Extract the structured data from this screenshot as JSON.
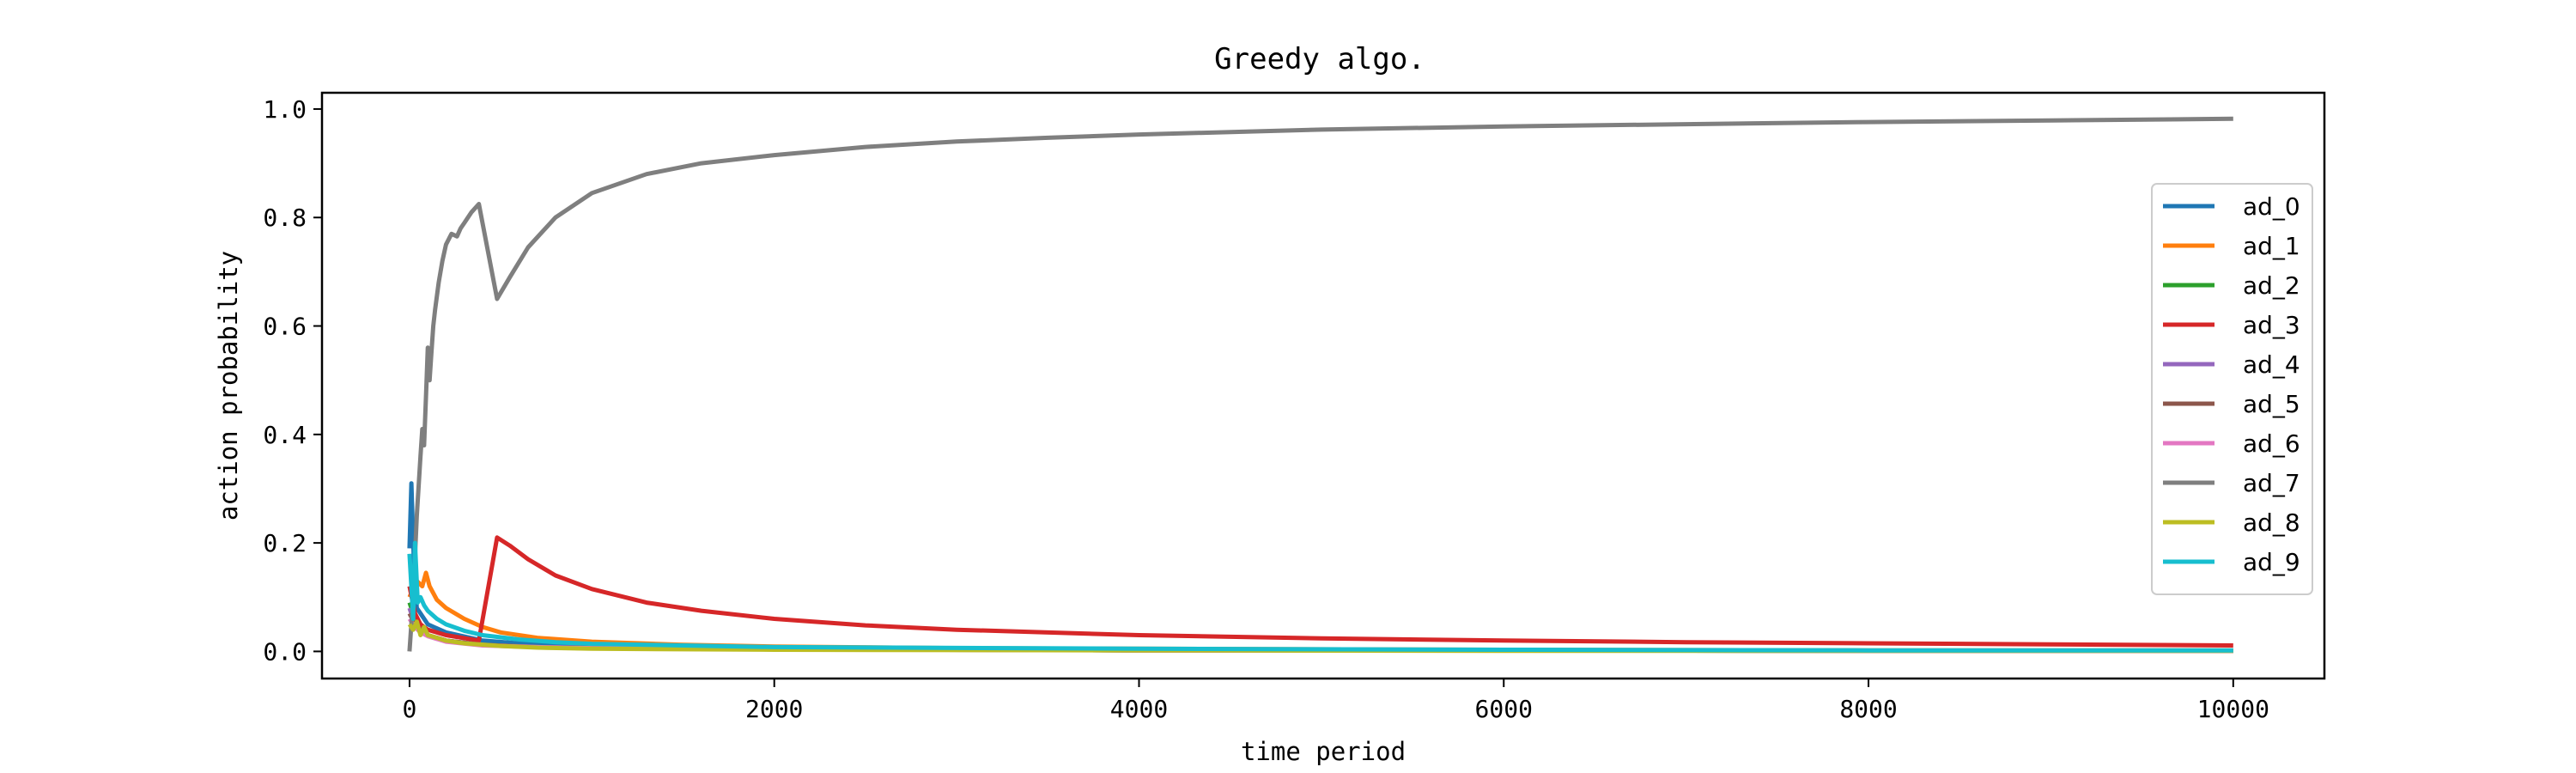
{
  "chart_data": {
    "type": "line",
    "title": "Greedy algo.",
    "xlabel": "time period",
    "ylabel": "action probability",
    "xlim": [
      -480,
      10500
    ],
    "ylim": [
      -0.05,
      1.03
    ],
    "xticks": [
      0,
      2000,
      4000,
      6000,
      8000,
      10000
    ],
    "xtick_labels": [
      "0",
      "2000",
      "4000",
      "6000",
      "8000",
      "10000"
    ],
    "yticks": [
      0.0,
      0.2,
      0.4,
      0.6,
      0.8,
      1.0
    ],
    "ytick_labels": [
      "0.0",
      "0.2",
      "0.4",
      "0.6",
      "0.8",
      "1.0"
    ],
    "grid": false,
    "legend_position": "center-right",
    "series": [
      {
        "name": "ad_0",
        "color": "#1f77b4",
        "x": [
          0,
          10,
          25,
          40,
          60,
          100,
          200,
          400,
          700,
          1000,
          2000,
          4000,
          6000,
          8000,
          10000
        ],
        "y": [
          0.19,
          0.31,
          0.15,
          0.08,
          0.07,
          0.05,
          0.035,
          0.02,
          0.012,
          0.009,
          0.005,
          0.003,
          0.002,
          0.0015,
          0.001
        ]
      },
      {
        "name": "ad_1",
        "color": "#ff7f0e",
        "x": [
          0,
          40,
          70,
          90,
          110,
          150,
          200,
          300,
          400,
          500,
          700,
          1000,
          1500,
          2000,
          3000,
          4000,
          6000,
          8000,
          10000
        ],
        "y": [
          0.1,
          0.13,
          0.12,
          0.145,
          0.12,
          0.095,
          0.08,
          0.06,
          0.045,
          0.035,
          0.025,
          0.018,
          0.012,
          0.009,
          0.006,
          0.005,
          0.003,
          0.002,
          0.002
        ]
      },
      {
        "name": "ad_2",
        "color": "#2ca02c",
        "x": [
          0,
          30,
          60,
          100,
          200,
          400,
          700,
          1000,
          2000,
          4000,
          6000,
          8000,
          10000
        ],
        "y": [
          0.09,
          0.06,
          0.04,
          0.03,
          0.02,
          0.012,
          0.008,
          0.006,
          0.004,
          0.002,
          0.002,
          0.001,
          0.001
        ]
      },
      {
        "name": "ad_3",
        "color": "#d62728",
        "x": [
          0,
          30,
          60,
          100,
          200,
          380,
          480,
          550,
          650,
          800,
          1000,
          1300,
          1600,
          2000,
          2500,
          3000,
          4000,
          5000,
          6000,
          7000,
          8000,
          9000,
          10000
        ],
        "y": [
          0.12,
          0.07,
          0.05,
          0.04,
          0.03,
          0.02,
          0.21,
          0.195,
          0.17,
          0.14,
          0.115,
          0.09,
          0.075,
          0.06,
          0.048,
          0.04,
          0.03,
          0.024,
          0.02,
          0.017,
          0.015,
          0.013,
          0.011
        ]
      },
      {
        "name": "ad_4",
        "color": "#9467bd",
        "x": [
          0,
          30,
          60,
          100,
          200,
          400,
          700,
          1000,
          2000,
          4000,
          6000,
          8000,
          10000
        ],
        "y": [
          0.08,
          0.05,
          0.04,
          0.03,
          0.02,
          0.012,
          0.008,
          0.006,
          0.004,
          0.002,
          0.002,
          0.001,
          0.001
        ]
      },
      {
        "name": "ad_5",
        "color": "#8c564b",
        "x": [
          0,
          30,
          60,
          100,
          200,
          400,
          700,
          1000,
          2000,
          4000,
          6000,
          8000,
          10000
        ],
        "y": [
          0.07,
          0.05,
          0.04,
          0.03,
          0.02,
          0.012,
          0.008,
          0.006,
          0.004,
          0.002,
          0.002,
          0.001,
          0.001
        ]
      },
      {
        "name": "ad_6",
        "color": "#e377c2",
        "x": [
          0,
          30,
          60,
          100,
          200,
          400,
          700,
          1000,
          2000,
          4000,
          6000,
          8000,
          10000
        ],
        "y": [
          0.06,
          0.045,
          0.035,
          0.028,
          0.018,
          0.011,
          0.008,
          0.006,
          0.004,
          0.002,
          0.002,
          0.001,
          0.001
        ]
      },
      {
        "name": "ad_7",
        "color": "#7f7f7f",
        "x": [
          0,
          20,
          40,
          60,
          70,
          80,
          90,
          100,
          110,
          120,
          130,
          140,
          160,
          180,
          200,
          230,
          260,
          280,
          300,
          340,
          380,
          480,
          550,
          650,
          800,
          1000,
          1300,
          1600,
          2000,
          2500,
          3000,
          3500,
          4000,
          5000,
          6000,
          7000,
          8000,
          9000,
          10000
        ],
        "y": [
          0.0,
          0.1,
          0.25,
          0.36,
          0.41,
          0.38,
          0.47,
          0.56,
          0.5,
          0.55,
          0.6,
          0.63,
          0.68,
          0.72,
          0.75,
          0.77,
          0.765,
          0.78,
          0.79,
          0.81,
          0.825,
          0.65,
          0.69,
          0.745,
          0.8,
          0.845,
          0.88,
          0.9,
          0.915,
          0.93,
          0.94,
          0.947,
          0.953,
          0.962,
          0.968,
          0.972,
          0.976,
          0.979,
          0.982
        ]
      },
      {
        "name": "ad_8",
        "color": "#bcbd22",
        "x": [
          0,
          20,
          40,
          60,
          80,
          100,
          150,
          200,
          300,
          500,
          700,
          1000,
          2000,
          4000,
          6000,
          8000,
          10000
        ],
        "y": [
          0.05,
          0.04,
          0.055,
          0.03,
          0.045,
          0.03,
          0.025,
          0.02,
          0.015,
          0.01,
          0.007,
          0.005,
          0.003,
          0.002,
          0.001,
          0.001,
          0.001
        ]
      },
      {
        "name": "ad_9",
        "color": "#17becf",
        "x": [
          0,
          20,
          30,
          45,
          60,
          80,
          100,
          150,
          200,
          300,
          400,
          600,
          800,
          1000,
          2000,
          4000,
          6000,
          8000,
          10000
        ],
        "y": [
          0.18,
          0.06,
          0.2,
          0.09,
          0.1,
          0.085,
          0.075,
          0.06,
          0.05,
          0.038,
          0.03,
          0.022,
          0.017,
          0.014,
          0.008,
          0.005,
          0.003,
          0.002,
          0.002
        ]
      }
    ]
  }
}
